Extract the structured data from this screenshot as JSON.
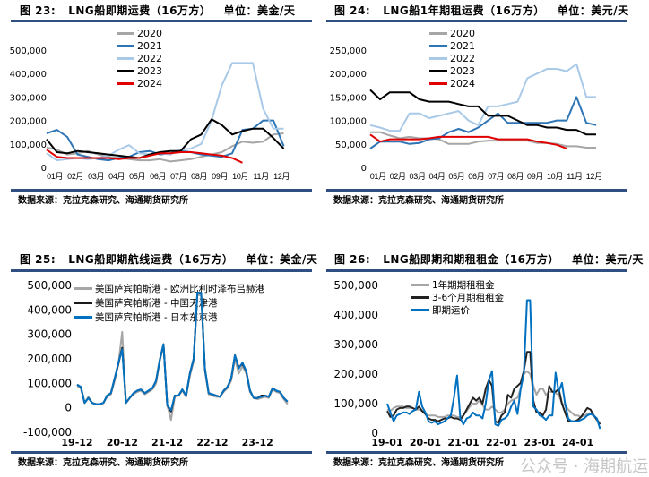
{
  "source": "数据来源：克拉克森研究、海通期货研究所",
  "watermark": "公众号 · 海期航运",
  "chart_data": [
    {
      "type": "line",
      "fig": "图 23:",
      "title": "LNG船即期运费（16万方）",
      "unit": "单位：美金/天",
      "x_unit": "month (semi-monthly points, 0 = start of 01月)",
      "x_ticks": [
        "01月",
        "02月",
        "03月",
        "04月",
        "05月",
        "06月",
        "07月",
        "08月",
        "09月",
        "10月",
        "11月",
        "12月"
      ],
      "y_ticks": [
        "0",
        "100,000",
        "200,000",
        "300,000",
        "400,000",
        "500,000"
      ],
      "ylim": [
        0,
        500000
      ],
      "y_scale": 1000,
      "legend": "top-center",
      "series": [
        {
          "name": "2020",
          "color": "#a6a6a6",
          "values": [
            85,
            75,
            55,
            60,
            70,
            55,
            45,
            40,
            35,
            30,
            30,
            35,
            25,
            30,
            35,
            45,
            55,
            65,
            90,
            110,
            105,
            110,
            140,
            145
          ]
        },
        {
          "name": "2021",
          "color": "#2e75b6",
          "values": [
            145,
            160,
            130,
            55,
            45,
            35,
            30,
            40,
            45,
            65,
            70,
            55,
            60,
            70,
            65,
            55,
            50,
            45,
            60,
            160,
            165,
            200,
            200,
            90
          ]
        },
        {
          "name": "2022",
          "color": "#a9c9e8",
          "values": [
            60,
            30,
            35,
            40,
            35,
            40,
            50,
            75,
            95,
            60,
            55,
            60,
            55,
            75,
            80,
            100,
            200,
            350,
            445,
            445,
            445,
            250,
            165,
            165
          ]
        },
        {
          "name": "2023",
          "color": "#000000",
          "values": [
            120,
            65,
            60,
            70,
            65,
            60,
            55,
            50,
            45,
            40,
            55,
            65,
            70,
            70,
            120,
            140,
            205,
            180,
            140,
            155,
            165,
            165,
            125,
            80
          ]
        },
        {
          "name": "2024",
          "color": "#e00000",
          "values": [
            75,
            45,
            40,
            40,
            40,
            40,
            40,
            35,
            40,
            40,
            50,
            60,
            60,
            65,
            65,
            60,
            55,
            50,
            40,
            20
          ]
        }
      ]
    },
    {
      "type": "line",
      "fig": "图 24:",
      "title": "LNG船1年期租运费（16万方）",
      "unit": "单位：美元/天",
      "x_unit": "month (semi-monthly points)",
      "x_ticks": [
        "01月",
        "02月",
        "03月",
        "04月",
        "05月",
        "06月",
        "07月",
        "08月",
        "09月",
        "10月",
        "11月",
        "12月"
      ],
      "y_ticks": [
        "0",
        "50,000",
        "100,000",
        "150,000",
        "200,000",
        "250,000"
      ],
      "ylim": [
        0,
        250000
      ],
      "y_scale": 1000,
      "legend": "top-center",
      "series": [
        {
          "name": "2020",
          "color": "#a6a6a6",
          "values": [
            75,
            75,
            68,
            62,
            65,
            62,
            62,
            60,
            50,
            50,
            50,
            55,
            57,
            57,
            57,
            57,
            57,
            52,
            52,
            50,
            45,
            45,
            42,
            42
          ]
        },
        {
          "name": "2021",
          "color": "#2e75b6",
          "values": [
            40,
            55,
            55,
            55,
            50,
            52,
            60,
            62,
            75,
            82,
            75,
            85,
            100,
            115,
            95,
            95,
            95,
            95,
            95,
            100,
            100,
            150,
            95,
            90
          ]
        },
        {
          "name": "2022",
          "color": "#a9c9e8",
          "values": [
            90,
            85,
            78,
            78,
            115,
            115,
            105,
            110,
            115,
            120,
            100,
            90,
            130,
            130,
            135,
            140,
            190,
            200,
            210,
            210,
            205,
            220,
            150,
            150
          ]
        },
        {
          "name": "2023",
          "color": "#000000",
          "values": [
            165,
            145,
            160,
            160,
            160,
            145,
            140,
            140,
            140,
            135,
            130,
            130,
            110,
            110,
            110,
            100,
            90,
            90,
            85,
            85,
            80,
            80,
            70,
            70
          ]
        },
        {
          "name": "2024",
          "color": "#e00000",
          "values": [
            70,
            55,
            60,
            60,
            60,
            60,
            62,
            65,
            65,
            65,
            65,
            65,
            65,
            60,
            60,
            60,
            60,
            55,
            52,
            48,
            40
          ]
        }
      ]
    },
    {
      "type": "line",
      "fig": "图 25:",
      "title": "LNG船即期航线运费（16万方）",
      "unit": "单位：美金/天",
      "x_unit": "monthly points starting 2019-12",
      "x_ticks": [
        "19-12",
        "20-12",
        "21-12",
        "22-12",
        "23-12"
      ],
      "y_ticks": [
        "-100,000",
        "0",
        "100,000",
        "200,000",
        "300,000",
        "400,000",
        "500,000"
      ],
      "ylim": [
        -100000,
        500000
      ],
      "y_scale": 1000,
      "legend": "top-left",
      "series": [
        {
          "name": "美国萨宾帕斯港 - 欧洲比利时泽布吕赫港",
          "color": "#a6a6a6",
          "values": [
            90,
            80,
            20,
            45,
            20,
            15,
            15,
            20,
            45,
            55,
            110,
            180,
            310,
            20,
            40,
            55,
            65,
            70,
            55,
            65,
            75,
            100,
            190,
            255,
            10,
            -50,
            45,
            50,
            70,
            45,
            130,
            190,
            460,
            460,
            150,
            55,
            50,
            45,
            45,
            65,
            80,
            110,
            200,
            140,
            170,
            140,
            65,
            40,
            35,
            40,
            45,
            40,
            75,
            65,
            60,
            35,
            15
          ]
        },
        {
          "name": "美国萨宾帕斯港 - 中国天津港",
          "color": "#1a1a1a",
          "values": [
            95,
            85,
            20,
            40,
            20,
            15,
            15,
            20,
            50,
            60,
            120,
            180,
            245,
            20,
            40,
            60,
            70,
            75,
            60,
            70,
            80,
            110,
            195,
            260,
            10,
            -15,
            50,
            50,
            75,
            50,
            140,
            200,
            470,
            470,
            160,
            60,
            55,
            50,
            45,
            70,
            85,
            120,
            215,
            165,
            180,
            150,
            70,
            40,
            40,
            50,
            50,
            45,
            80,
            70,
            65,
            40,
            25
          ]
        },
        {
          "name": "美国萨宾帕斯港 - 日本东京港",
          "color": "#0070c0",
          "values": [
            95,
            85,
            20,
            40,
            20,
            15,
            15,
            20,
            50,
            60,
            120,
            185,
            240,
            20,
            40,
            60,
            70,
            75,
            60,
            70,
            80,
            110,
            195,
            260,
            10,
            -10,
            50,
            50,
            75,
            50,
            140,
            200,
            470,
            470,
            160,
            60,
            55,
            50,
            45,
            70,
            85,
            120,
            215,
            160,
            185,
            150,
            70,
            40,
            40,
            45,
            50,
            45,
            80,
            70,
            65,
            40,
            25
          ]
        }
      ]
    },
    {
      "type": "line",
      "fig": "图 26:",
      "title": "LNG船即期和期租租金（16万方）",
      "unit": "单位：美元/天",
      "x_unit": "monthly points starting 2019-01",
      "x_ticks": [
        "19-01",
        "20-01",
        "21-01",
        "22-01",
        "23-01",
        "24-01"
      ],
      "y_ticks": [
        "0",
        "100,000",
        "200,000",
        "300,000",
        "400,000",
        "500,000"
      ],
      "ylim": [
        0,
        500000
      ],
      "y_scale": 1000,
      "legend": "top-left",
      "series": [
        {
          "name": "1年期期租租金",
          "color": "#a6a6a6",
          "values": [
            80,
            75,
            85,
            90,
            90,
            90,
            85,
            85,
            85,
            80,
            80,
            75,
            65,
            60,
            60,
            60,
            55,
            55,
            55,
            60,
            60,
            60,
            55,
            55,
            60,
            75,
            90,
            100,
            100,
            110,
            95,
            80,
            80,
            90,
            80,
            70,
            70,
            80,
            100,
            110,
            115,
            120,
            150,
            200,
            210,
            200,
            160,
            130,
            150,
            150,
            130,
            140,
            140,
            135,
            130,
            100,
            95,
            80,
            70,
            60,
            60,
            55,
            60,
            65,
            65,
            60,
            50,
            30
          ]
        },
        {
          "name": "3-6个月期租租金",
          "color": "#222222",
          "values": [
            75,
            55,
            60,
            80,
            85,
            85,
            90,
            90,
            85,
            80,
            90,
            75,
            65,
            50,
            45,
            45,
            40,
            45,
            50,
            50,
            55,
            50,
            50,
            45,
            60,
            80,
            100,
            120,
            110,
            120,
            100,
            150,
            180,
            160,
            40,
            35,
            60,
            70,
            130,
            120,
            150,
            160,
            170,
            210,
            275,
            275,
            110,
            70,
            70,
            60,
            80,
            160,
            140,
            140,
            150,
            100,
            70,
            40,
            40,
            40,
            45,
            55,
            70,
            85,
            80,
            60,
            45,
            30
          ]
        },
        {
          "name": "即期运价",
          "color": "#0070c0",
          "values": [
            100,
            70,
            40,
            60,
            65,
            70,
            70,
            65,
            75,
            80,
            140,
            90,
            70,
            40,
            35,
            40,
            30,
            35,
            40,
            50,
            60,
            120,
            195,
            50,
            30,
            50,
            55,
            70,
            60,
            60,
            50,
            100,
            180,
            210,
            30,
            25,
            45,
            50,
            60,
            90,
            110,
            65,
            150,
            200,
            450,
            450,
            90,
            80,
            60,
            55,
            45,
            60,
            60,
            205,
            140,
            170,
            100,
            50,
            40,
            40,
            40,
            45,
            50,
            60,
            65,
            60,
            50,
            15
          ]
        }
      ]
    }
  ]
}
